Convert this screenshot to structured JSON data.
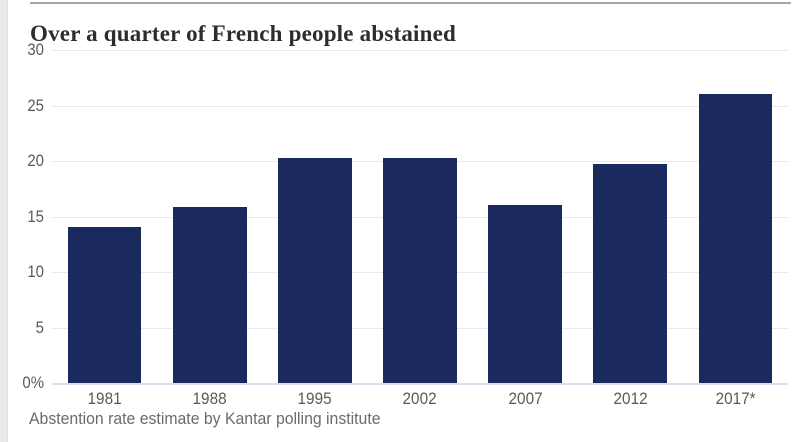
{
  "page": {
    "title": "Over a quarter of French people abstained",
    "caption": "Abstention rate estimate by Kantar polling institute"
  },
  "chart_data": {
    "type": "bar",
    "title": "Over a quarter of French people abstained",
    "caption": "Abstention rate estimate by Kantar polling institute",
    "categories": [
      "1981",
      "1988",
      "1995",
      "2002",
      "2007",
      "2012",
      "2017*"
    ],
    "values": [
      14.1,
      15.9,
      20.3,
      20.3,
      16.0,
      19.7,
      26.0
    ],
    "unit": "%",
    "xlabel": "",
    "ylabel": "",
    "ylim": [
      0,
      30
    ],
    "yticks": [
      {
        "label": "0%",
        "value": 0
      },
      {
        "label": "5",
        "value": 5
      },
      {
        "label": "10",
        "value": 10
      },
      {
        "label": "15",
        "value": 15
      },
      {
        "label": "20",
        "value": 20
      },
      {
        "label": "25",
        "value": 25
      },
      {
        "label": "30",
        "value": 30
      }
    ],
    "grid": true,
    "legend": false,
    "colors": {
      "bar": "#1b2a5e",
      "gridline": "#e8eaee",
      "axis_line": "#d9e0ec",
      "tick_label": "#5a5a5a",
      "title": "#2d2d2d",
      "caption": "#6b6b6b",
      "top_rule": "#a5a5a5",
      "left_gutter": "#eaeaea"
    }
  }
}
